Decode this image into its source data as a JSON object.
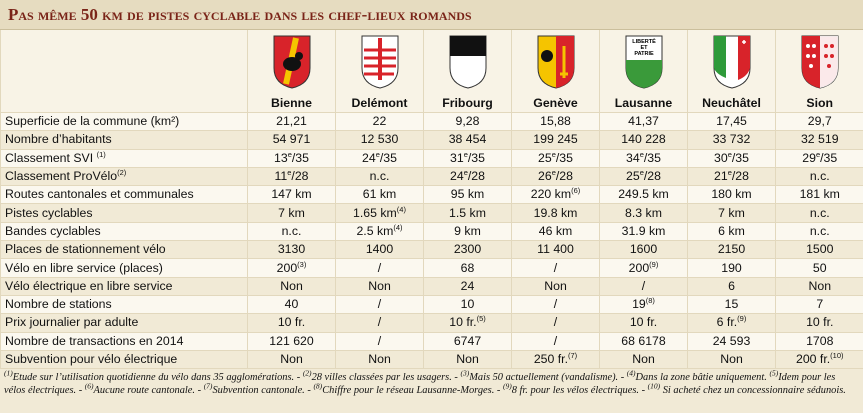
{
  "header": {
    "title": "Pas même 50 km de pistes cyclable dans les chef-lieux romands"
  },
  "table": {
    "columns": [
      "Bienne",
      "Delémont",
      "Fribourg",
      "Genève",
      "Lausanne",
      "Neuchâtel",
      "Sion"
    ],
    "crest_motto": [
      "LIBERTÉ",
      "ET",
      "PATRIE"
    ],
    "rows": [
      {
        "label": "Superficie de la commune (km²)",
        "cells": [
          "21,21",
          "22",
          "9,28",
          "15,88",
          "41,37",
          "17,45",
          "29,7"
        ]
      },
      {
        "label": "Nombre d’habitants",
        "cells": [
          "54 971",
          "12 530",
          "38 454",
          "199 245",
          "140 228",
          "33 732",
          "32 519"
        ]
      },
      {
        "label": {
          "text": "Classement SVI ",
          "sup": "(1)"
        },
        "cells": [
          {
            "text": "13",
            "sup": "e",
            "after": "/35"
          },
          {
            "text": "24",
            "sup": "e",
            "after": "/35"
          },
          {
            "text": "31",
            "sup": "e",
            "after": "/35"
          },
          {
            "text": "25",
            "sup": "e",
            "after": "/35"
          },
          {
            "text": "34",
            "sup": "e",
            "after": "/35"
          },
          {
            "text": "30",
            "sup": "e",
            "after": "/35"
          },
          {
            "text": "29",
            "sup": "e",
            "after": "/35"
          }
        ]
      },
      {
        "label": {
          "text": "Classement ProVélo",
          "sup": "(2)"
        },
        "cells": [
          {
            "text": "11",
            "sup": "e",
            "after": "/28"
          },
          "n.c.",
          {
            "text": "24",
            "sup": "e",
            "after": "/28"
          },
          {
            "text": "26",
            "sup": "e",
            "after": "/28"
          },
          {
            "text": "25",
            "sup": "e",
            "after": "/28"
          },
          {
            "text": "21",
            "sup": "e",
            "after": "/28"
          },
          "n.c."
        ]
      },
      {
        "label": "Routes cantonales et communales",
        "cells": [
          "147 km",
          "61 km",
          "95 km",
          {
            "text": "220 km",
            "sup": "(6)"
          },
          "249.5 km",
          "180 km",
          "181 km"
        ]
      },
      {
        "label": "Pistes cyclables",
        "cells": [
          "7 km",
          {
            "text": "1.65 km",
            "sup": "(4)"
          },
          "1.5 km",
          "19.8 km",
          "8.3 km",
          "7 km",
          "n.c."
        ]
      },
      {
        "label": "Bandes cyclables",
        "cells": [
          "n.c.",
          {
            "text": "2.5 km",
            "sup": "(4)"
          },
          "9 km",
          "46 km",
          "31.9 km",
          "6 km",
          "n.c."
        ]
      },
      {
        "label": "Places de stationnement vélo",
        "cells": [
          "3130",
          "1400",
          "2300",
          "11 400",
          "1600",
          "2150",
          "1500"
        ]
      },
      {
        "label": "Vélo en libre service (places)",
        "cells": [
          {
            "text": "200",
            "sup": "(3)"
          },
          "/",
          "68",
          "/",
          {
            "text": "200",
            "sup": "(9)"
          },
          "190",
          "50"
        ]
      },
      {
        "label": "Vélo électrique en libre service",
        "cells": [
          "Non",
          "Non",
          "24",
          "Non",
          "/",
          "6",
          "Non"
        ]
      },
      {
        "label": "Nombre de stations",
        "cells": [
          "40",
          "/",
          "10",
          "/",
          {
            "text": "19",
            "sup": "(8)"
          },
          "15",
          "7"
        ]
      },
      {
        "label": "Prix journalier par adulte",
        "cells": [
          "10 fr.",
          "/",
          {
            "text": "10 fr.",
            "sup": "(5)"
          },
          "/",
          "10 fr.",
          {
            "text": "6 fr.",
            "sup": "(9)"
          },
          "10 fr."
        ]
      },
      {
        "label": "Nombre de transactions en 2014",
        "cells": [
          "121 620",
          "/",
          "6747",
          "/",
          "68 6178",
          "24 593",
          "1708"
        ]
      },
      {
        "label": "Subvention pour vélo électrique",
        "cells": [
          "Non",
          "Non",
          "Non",
          {
            "text": "250 fr.",
            "sup": "(7)"
          },
          "Non",
          "Non",
          {
            "text": "200 fr.",
            "sup": "(10)"
          }
        ]
      }
    ]
  },
  "notes": [
    {
      "mark": "(1)",
      "text": "Etude sur l’utilisation quotidienne du vélo dans 35 agglomérations. - "
    },
    {
      "mark": "(2)",
      "text": "28 villes classées par les usagers. - "
    },
    {
      "mark": "(3)",
      "text": "Mais 50 actuellement (vandalisme). - "
    },
    {
      "mark": "(4)",
      "text": "Dans la zone bâtie uniquement. "
    },
    {
      "mark": "(5)",
      "text": "Idem pour les vélos électriques. - "
    },
    {
      "mark": "(6)",
      "text": "Aucune route cantonale. - "
    },
    {
      "mark": "(7)",
      "text": "Subvention cantonale. - "
    },
    {
      "mark": "(8)",
      "text": "Chiffre pour le réseau Lausanne-Morges. - "
    },
    {
      "mark": "(9)",
      "text": "8 fr. pour les vélos électriques. - "
    },
    {
      "mark": "(10)",
      "text": " Si acheté chez un concessionnaire sédunois."
    }
  ]
}
